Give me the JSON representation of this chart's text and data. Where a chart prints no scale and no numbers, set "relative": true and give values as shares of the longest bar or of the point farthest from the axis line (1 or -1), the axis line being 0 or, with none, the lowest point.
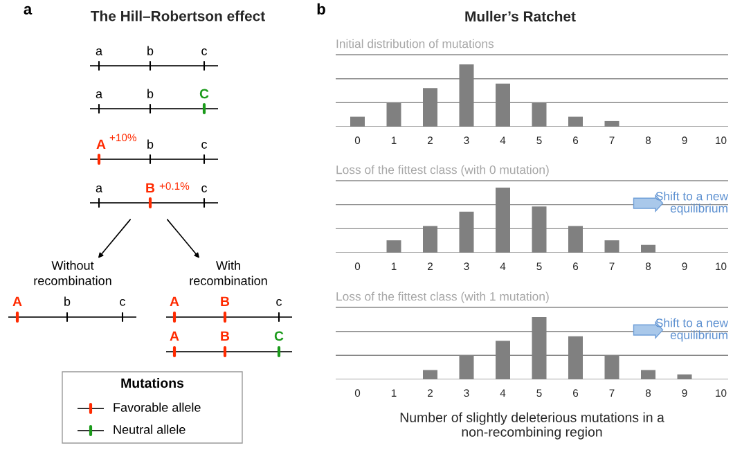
{
  "chart_data": [
    {
      "type": "other",
      "title": "The Hill–Robertson effect",
      "annotations": [
        "a",
        "b",
        "a",
        "b",
        "c",
        "a",
        "b",
        "C",
        "A",
        "+10%",
        "b",
        "c",
        "a",
        "B",
        "+0.1%",
        "c",
        "Without\nrecombination",
        "With\nrecombination",
        "A",
        "b",
        "c",
        "A",
        "B",
        "c",
        "A",
        "B",
        "C",
        "Mutations",
        "Favorable allele",
        "Neutral allele"
      ]
    },
    {
      "type": "bar",
      "relative": true,
      "title": "Muller’s Ratchet",
      "subtitle": "Initial distribution of mutations",
      "categories": [
        "0",
        "1",
        "2",
        "3",
        "4",
        "5",
        "6",
        "7",
        "8",
        "9",
        "10"
      ],
      "values": [
        0.16,
        0.38,
        0.62,
        1,
        0.69,
        0.38,
        0.16,
        0.09,
        0,
        0,
        0
      ],
      "color": "#808080",
      "ref_lines": [
        {
          "axis": "y",
          "value": 0,
          "color": "#888888"
        },
        {
          "axis": "y",
          "value": 0.385,
          "color": "#888888"
        },
        {
          "axis": "y",
          "value": 0.769,
          "color": "#888888"
        },
        {
          "axis": "y",
          "value": 1.154,
          "color": "#888888"
        }
      ]
    },
    {
      "type": "bar",
      "relative": true,
      "subtitle": "Loss of the fittest class (with 0 mutation)",
      "categories": [
        "0",
        "1",
        "2",
        "3",
        "4",
        "5",
        "6",
        "7",
        "8",
        "9",
        "10"
      ],
      "values": [
        0,
        0.19,
        0.41,
        0.63,
        1,
        0.71,
        0.41,
        0.19,
        0.12,
        0,
        0
      ],
      "color": "#808080",
      "ref_lines": [
        {
          "axis": "y",
          "value": 0,
          "color": "#888888"
        },
        {
          "axis": "y",
          "value": 0.368,
          "color": "#888888"
        },
        {
          "axis": "y",
          "value": 0.737,
          "color": "#888888"
        },
        {
          "axis": "y",
          "value": 1.105,
          "color": "#888888"
        }
      ],
      "annotations": [
        "Shift to a new\nequilibrium"
      ]
    },
    {
      "type": "bar",
      "relative": true,
      "subtitle": "Loss of the fittest class (with 1 mutation)",
      "categories": [
        "0",
        "1",
        "2",
        "3",
        "4",
        "5",
        "6",
        "7",
        "8",
        "9",
        "10"
      ],
      "values": [
        0,
        0,
        0.15,
        0.38,
        0.62,
        1,
        0.69,
        0.38,
        0.15,
        0.08,
        0
      ],
      "color": "#808080",
      "ref_lines": [
        {
          "axis": "y",
          "value": 0,
          "color": "#888888"
        },
        {
          "axis": "y",
          "value": 0.385,
          "color": "#888888"
        },
        {
          "axis": "y",
          "value": 0.769,
          "color": "#888888"
        },
        {
          "axis": "y",
          "value": 1.154,
          "color": "#888888"
        }
      ],
      "annotations": [
        "Shift to a new\nequilibrium"
      ],
      "xlabel": "Number of slightly deleterious mutations in a\nnon-recombining region"
    }
  ]
}
